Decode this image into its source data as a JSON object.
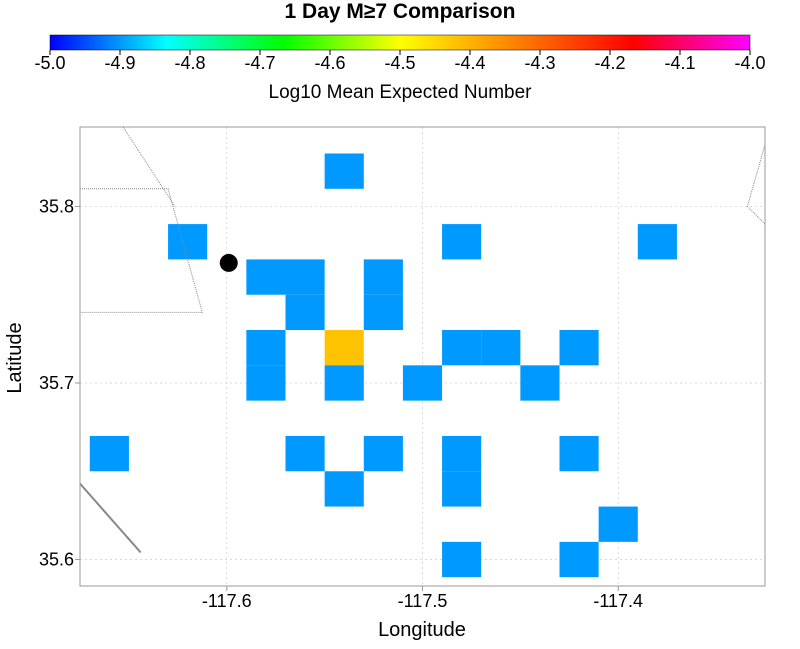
{
  "chart_data": {
    "type": "heatmap",
    "title": "1 Day M≥7 Comparison",
    "colorbar": {
      "label": "Log10 Mean Expected Number",
      "range": [
        -5.0,
        -4.0
      ],
      "ticks": [
        "-5.0",
        "-4.9",
        "-4.8",
        "-4.7",
        "-4.6",
        "-4.5",
        "-4.4",
        "-4.3",
        "-4.2",
        "-4.1",
        "-4.0"
      ],
      "colormap": [
        "#0000ff",
        "#00ffff",
        "#00ff00",
        "#ffff00",
        "#ff8000",
        "#ff0000",
        "#ff00ff"
      ]
    },
    "xlabel": "Longitude",
    "ylabel": "Latitude",
    "xlim": [
      -117.675,
      -117.325
    ],
    "ylim": [
      35.585,
      35.845
    ],
    "xticks": [
      "-117.6",
      "-117.5",
      "-117.4"
    ],
    "yticks": [
      "35.6",
      "35.7",
      "35.8"
    ],
    "grid": true,
    "cell_size": 0.02,
    "cells": [
      {
        "lon": -117.54,
        "lat": 35.82,
        "value": -4.9
      },
      {
        "lon": -117.62,
        "lat": 35.78,
        "value": -4.9
      },
      {
        "lon": -117.48,
        "lat": 35.78,
        "value": -4.9
      },
      {
        "lon": -117.38,
        "lat": 35.78,
        "value": -4.9
      },
      {
        "lon": -117.58,
        "lat": 35.76,
        "value": -4.9
      },
      {
        "lon": -117.56,
        "lat": 35.76,
        "value": -4.9
      },
      {
        "lon": -117.52,
        "lat": 35.76,
        "value": -4.9
      },
      {
        "lon": -117.56,
        "lat": 35.74,
        "value": -4.9
      },
      {
        "lon": -117.52,
        "lat": 35.74,
        "value": -4.9
      },
      {
        "lon": -117.58,
        "lat": 35.72,
        "value": -4.9
      },
      {
        "lon": -117.54,
        "lat": 35.72,
        "value": -4.42
      },
      {
        "lon": -117.48,
        "lat": 35.72,
        "value": -4.9
      },
      {
        "lon": -117.46,
        "lat": 35.72,
        "value": -4.9
      },
      {
        "lon": -117.42,
        "lat": 35.72,
        "value": -4.9
      },
      {
        "lon": -117.58,
        "lat": 35.7,
        "value": -4.9
      },
      {
        "lon": -117.54,
        "lat": 35.7,
        "value": -4.9
      },
      {
        "lon": -117.5,
        "lat": 35.7,
        "value": -4.9
      },
      {
        "lon": -117.44,
        "lat": 35.7,
        "value": -4.9
      },
      {
        "lon": -117.66,
        "lat": 35.66,
        "value": -4.9
      },
      {
        "lon": -117.56,
        "lat": 35.66,
        "value": -4.9
      },
      {
        "lon": -117.52,
        "lat": 35.66,
        "value": -4.9
      },
      {
        "lon": -117.48,
        "lat": 35.66,
        "value": -4.9
      },
      {
        "lon": -117.42,
        "lat": 35.66,
        "value": -4.9
      },
      {
        "lon": -117.54,
        "lat": 35.64,
        "value": -4.9
      },
      {
        "lon": -117.48,
        "lat": 35.64,
        "value": -4.9
      },
      {
        "lon": -117.4,
        "lat": 35.62,
        "value": -4.9
      },
      {
        "lon": -117.48,
        "lat": 35.6,
        "value": -4.9
      },
      {
        "lon": -117.42,
        "lat": 35.6,
        "value": -4.9
      }
    ],
    "marker": {
      "lon": -117.599,
      "lat": 35.768,
      "color": "#000000"
    },
    "faults": [
      {
        "stroke": "#888888",
        "dash": "1,1",
        "points": [
          [
            -117.675,
            35.81
          ],
          [
            -117.63,
            35.81
          ],
          [
            -117.6125,
            35.74
          ],
          [
            -117.675,
            35.74
          ]
        ]
      },
      {
        "stroke": "#888888",
        "dash": "1,1",
        "points": [
          [
            -117.653,
            35.845
          ],
          [
            -117.6265,
            35.8
          ]
        ]
      },
      {
        "stroke": "#888888",
        "dash": "",
        "points": [
          [
            -117.675,
            35.643
          ],
          [
            -117.644,
            35.604
          ]
        ]
      },
      {
        "stroke": "#888888",
        "dash": "1,1",
        "points": [
          [
            -117.325,
            35.835
          ],
          [
            -117.334,
            35.8
          ],
          [
            -117.325,
            35.79
          ]
        ]
      }
    ]
  }
}
